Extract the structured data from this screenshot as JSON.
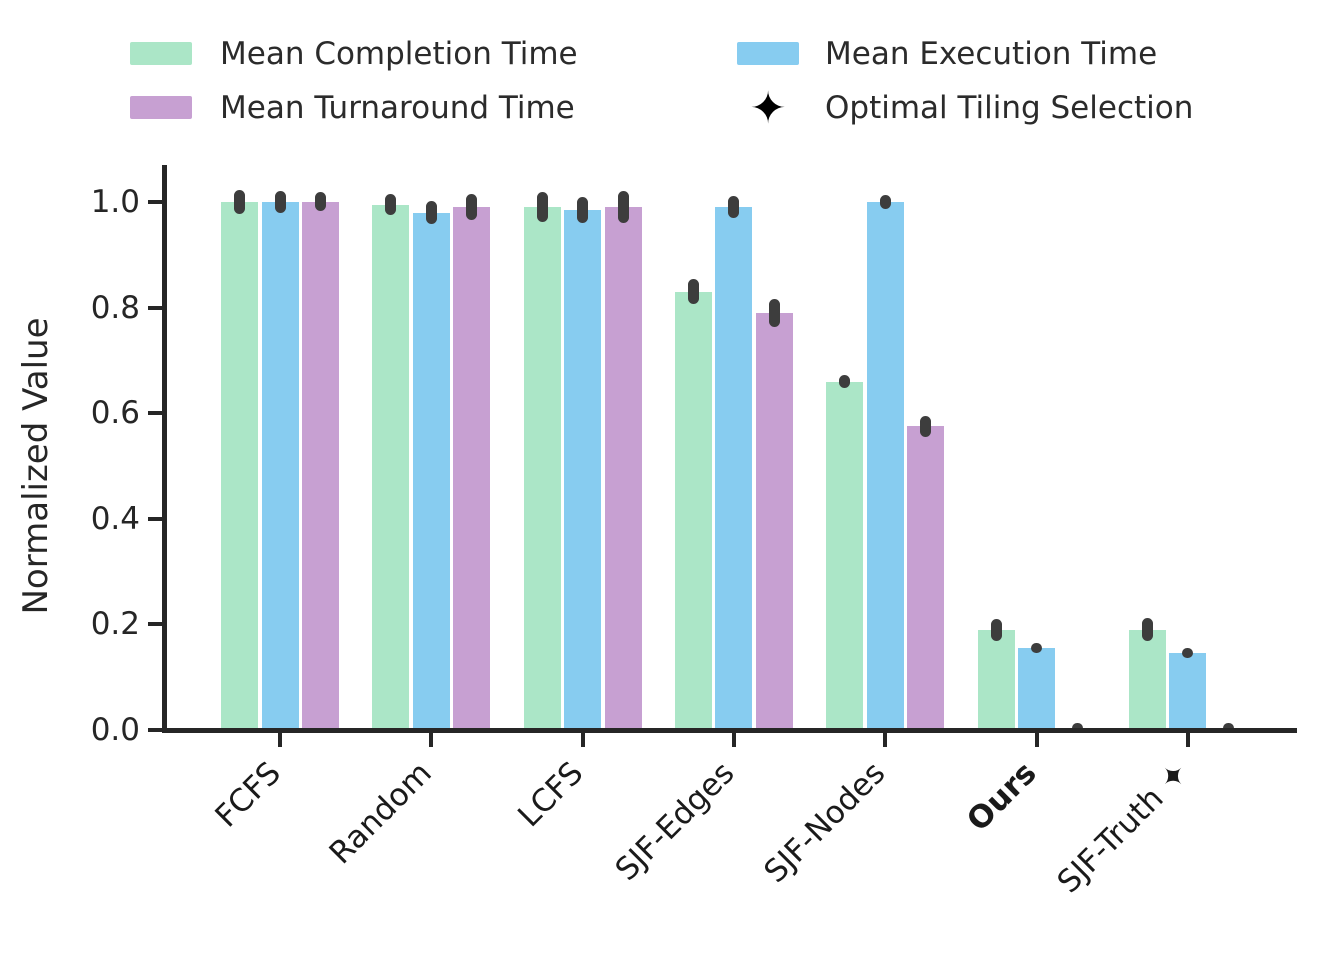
{
  "legend": {
    "items": [
      {
        "label": "Mean Completion Time",
        "type": "swatch",
        "color": "#abe6c7"
      },
      {
        "label": "Mean Turnaround Time",
        "type": "swatch",
        "color": "#c7a0d2"
      },
      {
        "label": "Mean Execution Time",
        "type": "swatch",
        "color": "#87ccf0"
      },
      {
        "label": "Optimal Tiling Selection",
        "type": "marker",
        "marker": "four-pointed-star",
        "symbol": "✦",
        "color": "#000000"
      }
    ]
  },
  "chart_data": {
    "type": "bar",
    "title": "",
    "xlabel": "",
    "ylabel": "Normalized Value",
    "ylim": [
      0,
      1.07
    ],
    "grid": false,
    "legend_position": "top, two columns",
    "yticks": [
      0.0,
      0.2,
      0.4,
      0.6,
      0.8,
      1.0
    ],
    "ytick_labels": [
      "0.0",
      "0.2",
      "0.4",
      "0.6",
      "0.8",
      "1.0"
    ],
    "categories": [
      {
        "label": "FCFS",
        "bold": false
      },
      {
        "label": "Random",
        "bold": false
      },
      {
        "label": "LCFS",
        "bold": false
      },
      {
        "label": "SJF-Edges",
        "bold": false
      },
      {
        "label": "SJF-Nodes",
        "bold": false
      },
      {
        "label": "Ours",
        "bold": true
      },
      {
        "label": "SJF-Truth ✦",
        "bold": false
      }
    ],
    "series": [
      {
        "name": "Mean Completion Time",
        "color": "#abe6c7",
        "values": [
          1.0,
          0.995,
          0.99,
          0.83,
          0.66,
          0.19,
          0.19
        ],
        "errors": [
          0.022,
          0.02,
          0.028,
          0.024,
          0.013,
          0.021,
          0.022
        ]
      },
      {
        "name": "Mean Execution Time",
        "color": "#87ccf0",
        "values": [
          1.0,
          0.98,
          0.985,
          0.99,
          1.0,
          0.155,
          0.145
        ],
        "errors": [
          0.02,
          0.022,
          0.025,
          0.021,
          0.014,
          0.009,
          0.009
        ]
      },
      {
        "name": "Mean Turnaround Time",
        "color": "#c7a0d2",
        "values": [
          1.0,
          0.99,
          0.99,
          0.79,
          0.575,
          0.004,
          0.004
        ],
        "errors": [
          0.018,
          0.025,
          0.03,
          0.026,
          0.02,
          0.005,
          0.005
        ]
      }
    ],
    "error_color": "#3d3d3d",
    "axis_color": "#262626"
  }
}
